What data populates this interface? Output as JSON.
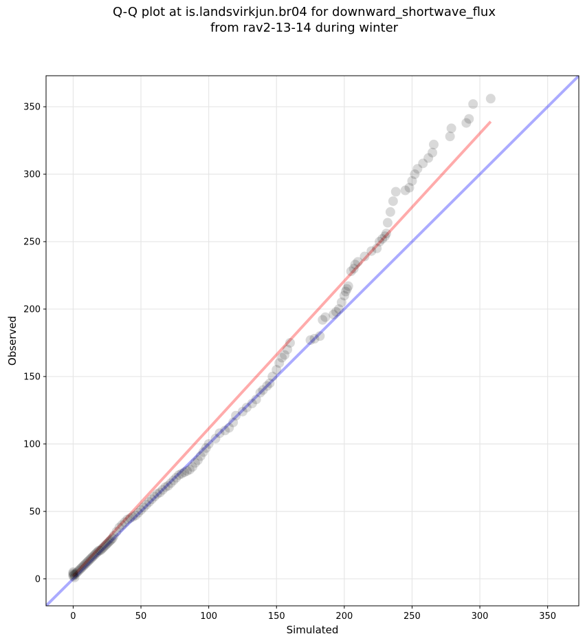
{
  "chart_data": {
    "type": "scatter",
    "title_lines": [
      "Q-Q plot at is.landsvirkjun.br04 for downward_shortwave_flux",
      "from rav2-13-14 during winter"
    ],
    "xlabel": "Simulated",
    "ylabel": "Observed",
    "xlim": [
      -20,
      373
    ],
    "ylim": [
      -20,
      373
    ],
    "xticks": [
      0,
      50,
      100,
      150,
      200,
      250,
      300,
      350
    ],
    "yticks": [
      0,
      50,
      100,
      150,
      200,
      250,
      300,
      350
    ],
    "grid": true,
    "legend": "none",
    "colors": {
      "points": "#000000",
      "identity_line": "#0000ff",
      "fit_line": "#ff0000",
      "grid": "#e6e6e6"
    },
    "identity_line": {
      "x": [
        -20,
        373
      ],
      "y": [
        -20,
        373
      ]
    },
    "fit_line": {
      "x": [
        0,
        308
      ],
      "y": [
        2,
        339
      ]
    },
    "points": {
      "x": [
        0,
        0,
        0,
        0,
        1,
        1,
        2,
        3,
        4,
        5,
        6,
        7,
        8,
        9,
        10,
        11,
        12,
        13,
        14,
        15,
        16,
        17,
        18,
        19,
        20,
        21,
        22,
        23,
        24,
        25,
        26,
        27,
        28,
        29,
        30,
        32,
        34,
        36,
        38,
        40,
        42,
        44,
        46,
        48,
        50,
        52,
        54,
        56,
        58,
        60,
        62,
        64,
        66,
        68,
        70,
        72,
        74,
        76,
        78,
        80,
        82,
        84,
        86,
        88,
        90,
        92,
        94,
        96,
        98,
        100,
        105,
        108,
        112,
        115,
        118,
        120,
        125,
        128,
        132,
        135,
        138,
        140,
        143,
        145,
        147,
        150,
        152,
        154,
        156,
        158,
        160,
        175,
        178,
        182,
        184,
        186,
        192,
        194,
        196,
        198,
        200,
        201,
        202,
        203,
        205,
        207,
        208,
        210,
        215,
        220,
        224,
        226,
        228,
        230,
        231,
        232,
        234,
        236,
        238,
        245,
        248,
        250,
        252,
        254,
        258,
        262,
        265,
        266,
        278,
        279,
        290,
        292,
        295,
        308
      ],
      "y": [
        2,
        3,
        4,
        5,
        1,
        3,
        4,
        5,
        6,
        7,
        8,
        9,
        10,
        11,
        12,
        13,
        14,
        15,
        16,
        17,
        18,
        19,
        20,
        21,
        21,
        22,
        23,
        24,
        25,
        26,
        27,
        28,
        29,
        30,
        32,
        35,
        38,
        40,
        42,
        44,
        45,
        46,
        47,
        49,
        51,
        53,
        55,
        57,
        59,
        61,
        63,
        64,
        66,
        68,
        69,
        71,
        73,
        75,
        77,
        78,
        79,
        80,
        81,
        83,
        86,
        88,
        91,
        94,
        97,
        100,
        104,
        108,
        110,
        112,
        116,
        121,
        124,
        127,
        130,
        133,
        138,
        140,
        143,
        145,
        150,
        155,
        160,
        164,
        166,
        170,
        175,
        177,
        178,
        180,
        192,
        194,
        196,
        198,
        200,
        205,
        210,
        213,
        215,
        217,
        228,
        230,
        233,
        235,
        239,
        243,
        245,
        250,
        252,
        254,
        256,
        264,
        272,
        280,
        287,
        288,
        290,
        295,
        300,
        304,
        308,
        312,
        316,
        322,
        328,
        334,
        338,
        341,
        352,
        356
      ]
    }
  }
}
